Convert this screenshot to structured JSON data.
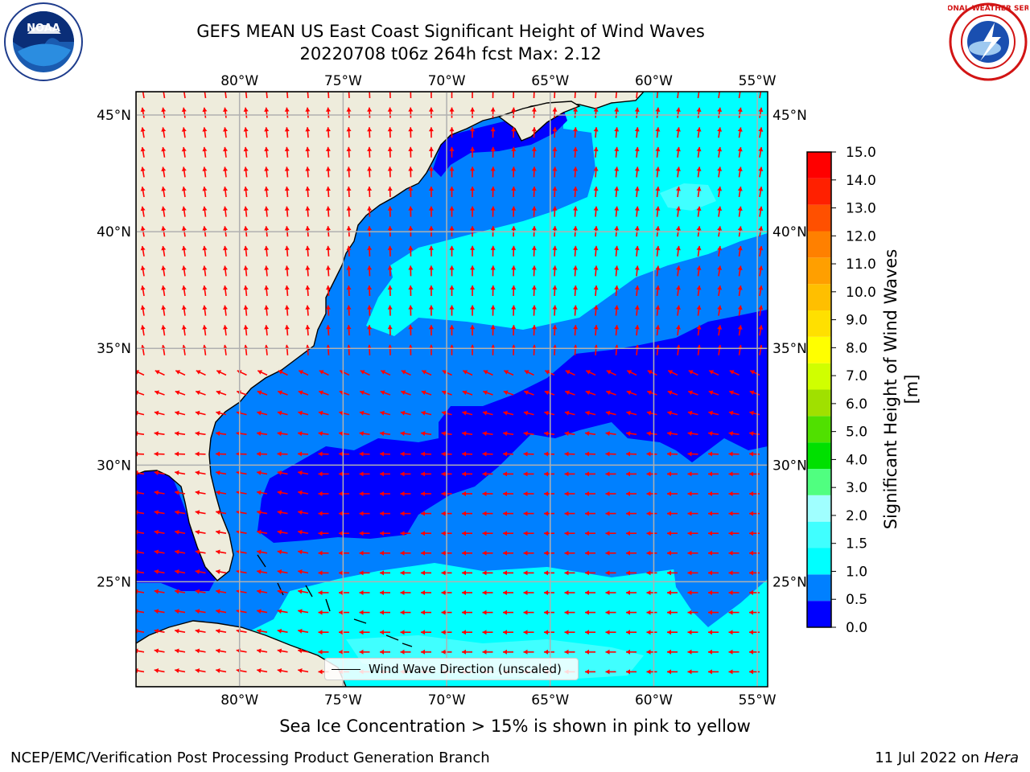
{
  "header": {
    "title_line1": "GEFS MEAN US East Coast Significant Height of Wind Waves",
    "title_line2": "20220708 t06z 264h fcst   Max: 2.12"
  },
  "logos": {
    "noaa_text": "NOAA",
    "nws_text": "NATIONAL WEATHER SERVICE"
  },
  "map": {
    "lon_ticks": [
      "80°W",
      "75°W",
      "70°W",
      "65°W",
      "60°W",
      "55°W"
    ],
    "lat_ticks": [
      "45°N",
      "40°N",
      "35°N",
      "30°N",
      "25°N"
    ],
    "lon_range": [
      -85,
      -54.5
    ],
    "lat_range": [
      20.5,
      46
    ],
    "colors": {
      "land": "#eeecdc",
      "arrows": "#ff0000",
      "grid": "#b0b0b0"
    }
  },
  "colorbar": {
    "label": "Significant Height of Wind Waves [m]",
    "levels": [
      "0.0",
      "0.5",
      "1.0",
      "1.5",
      "2.0",
      "3.0",
      "4.0",
      "5.0",
      "6.0",
      "7.0",
      "8.0",
      "9.0",
      "10.0",
      "11.0",
      "12.0",
      "13.0",
      "14.0",
      "15.0"
    ],
    "colors": [
      "#0000ff",
      "#0080ff",
      "#00ffff",
      "#40ffff",
      "#a0ffff",
      "#50ff80",
      "#00e000",
      "#50e000",
      "#a0e000",
      "#d0ff00",
      "#ffff00",
      "#ffe000",
      "#ffbf00",
      "#ff9f00",
      "#ff8000",
      "#ff5000",
      "#ff2000",
      "#ff0000"
    ]
  },
  "legend": {
    "label": "Wind Wave Direction (unscaled)"
  },
  "footer": {
    "sea_ice_note": "Sea Ice Concentration > 15% is shown in pink to yellow",
    "credit": "NCEP/EMC/Verification Post Processing Product Generation Branch",
    "run_date": "11 Jul 2022 on",
    "machine": "Hera"
  }
}
